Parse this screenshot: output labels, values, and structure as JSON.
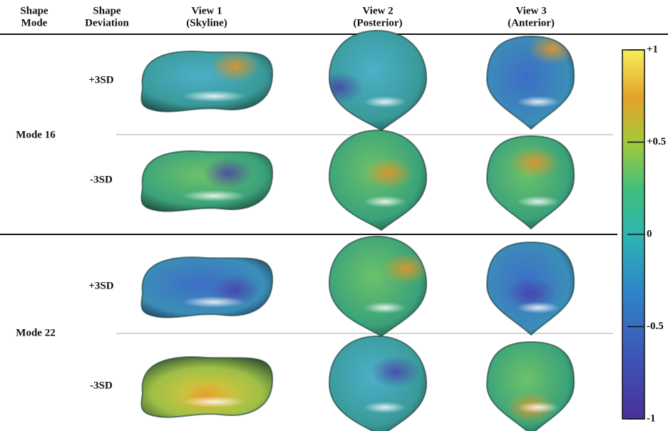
{
  "table": {
    "headers": [
      [
        "Shape",
        "Mode"
      ],
      [
        "Shape",
        "Deviation"
      ],
      [
        "View 1",
        "(Skyline)"
      ],
      [
        "View 2",
        "(Posterior)"
      ],
      [
        "View 3",
        "(Anterior)"
      ]
    ],
    "groups": [
      {
        "label": "Mode 16",
        "rows": [
          "+3SD",
          "-3SD"
        ]
      },
      {
        "label": "Mode 22",
        "rows": [
          "+3SD",
          "-3SD"
        ]
      }
    ]
  },
  "colorbar": {
    "lim": [
      -1,
      1
    ],
    "ticks": [
      {
        "value": 1,
        "label": "+1"
      },
      {
        "value": 0.5,
        "label": "+0.5"
      },
      0,
      -0.5,
      -1
    ]
  }
}
